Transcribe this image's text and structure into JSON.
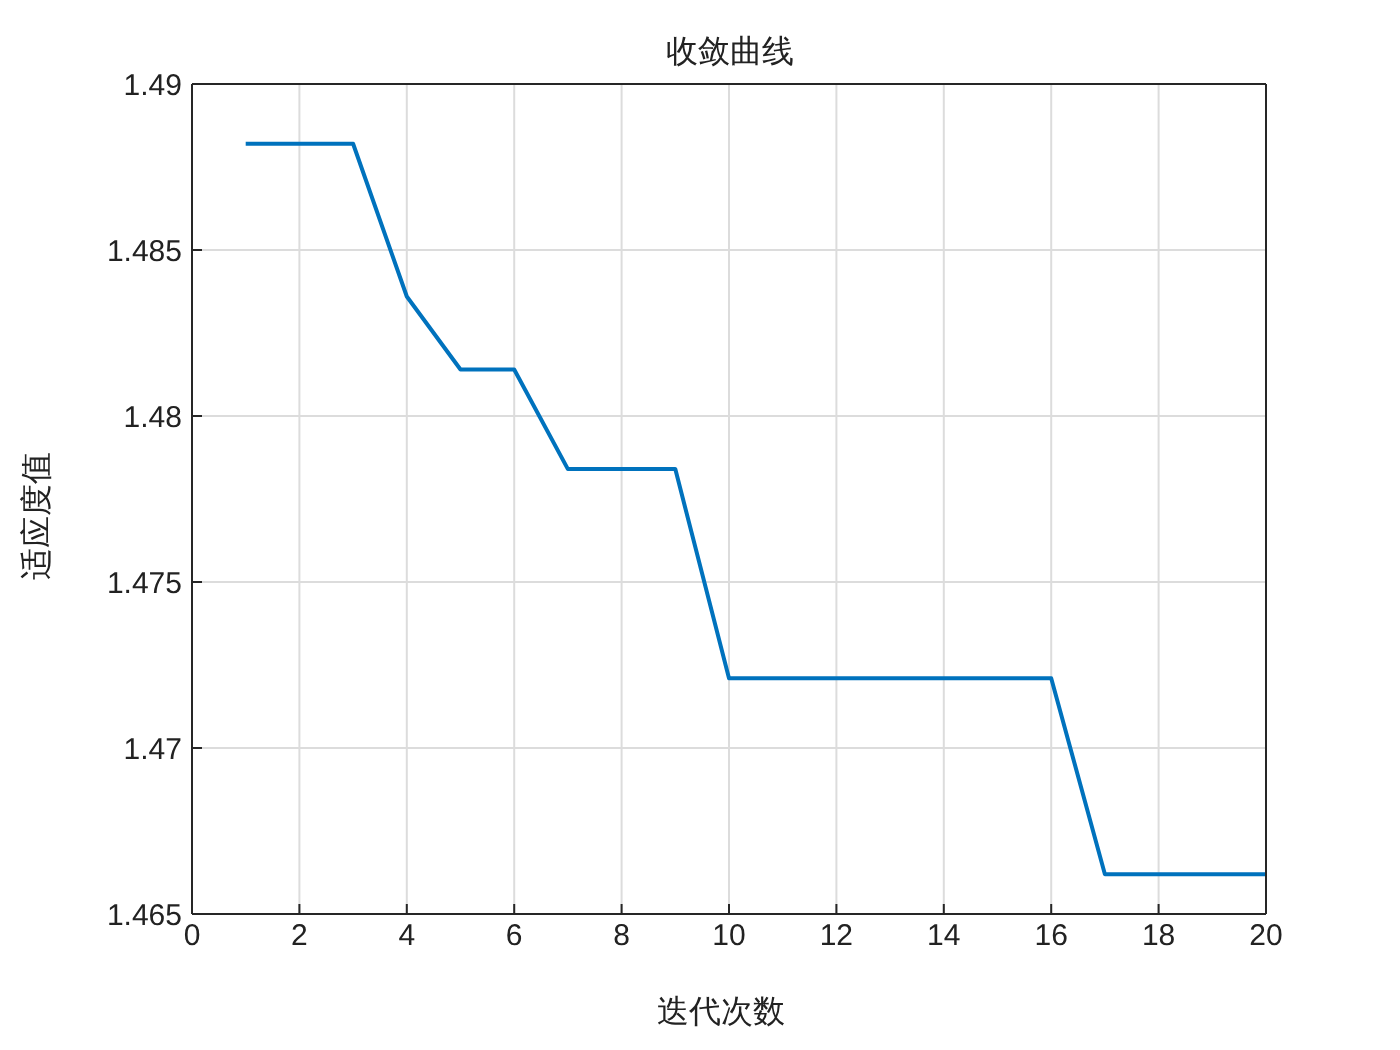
{
  "chart_data": {
    "type": "line",
    "title": "收敛曲线",
    "xlabel": "迭代次数",
    "ylabel": "适应度值",
    "x": [
      1,
      2,
      3,
      4,
      5,
      6,
      7,
      8,
      9,
      10,
      11,
      12,
      13,
      14,
      15,
      16,
      17,
      18,
      19,
      20
    ],
    "series": [
      {
        "color": "#0072bd",
        "values": [
          1.4882,
          1.4882,
          1.4882,
          1.4836,
          1.4814,
          1.4814,
          1.4784,
          1.4784,
          1.4784,
          1.4721,
          1.4721,
          1.4721,
          1.4721,
          1.4721,
          1.4721,
          1.4721,
          1.4662,
          1.4662,
          1.4662,
          1.4662
        ]
      }
    ],
    "xlim": [
      0,
      20
    ],
    "xticks": [
      0,
      2,
      4,
      6,
      8,
      10,
      12,
      14,
      16,
      18,
      20
    ],
    "ylim": [
      1.465,
      1.49
    ],
    "yticks": [
      1.465,
      1.47,
      1.475,
      1.48,
      1.485,
      1.49
    ],
    "grid": true,
    "marker": "none",
    "line_style": "solid"
  }
}
